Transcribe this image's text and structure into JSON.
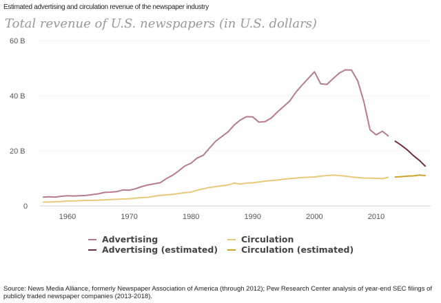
{
  "subtitle": "Estimated advertising and circulation revenue of the newspaper industry",
  "source": "Source: News Media Alliance, formerly Newspaper Association of America (through 2012); Pew Research Center analysis of year-end SEC filings of publicly traded newspaper companies (2013-2018).",
  "chart_data": {
    "type": "line",
    "title": "Total revenue of U.S. newspapers (in U.S. dollars)",
    "xlabel": "",
    "ylabel": "",
    "xlim": [
      1956,
      2018
    ],
    "ylim": [
      0,
      60
    ],
    "yticks": [
      {
        "v": 0,
        "label": "0"
      },
      {
        "v": 20,
        "label": "20 B"
      },
      {
        "v": 40,
        "label": "40 B"
      },
      {
        "v": 60,
        "label": "60 B"
      }
    ],
    "xticks": [
      1960,
      1970,
      1980,
      1990,
      2000,
      2010
    ],
    "grid": true,
    "legend_placement": "bottom",
    "series": [
      {
        "name": "Advertising",
        "color": "#b77a8c",
        "x0": 1956,
        "values": [
          3.2,
          3.3,
          3.2,
          3.5,
          3.7,
          3.6,
          3.7,
          3.8,
          4.1,
          4.4,
          4.9,
          5.0,
          5.2,
          5.8,
          5.7,
          6.2,
          7.0,
          7.6,
          8.0,
          8.4,
          9.9,
          11.1,
          12.7,
          14.5,
          15.5,
          17.4,
          18.4,
          21.0,
          23.5,
          25.2,
          26.9,
          29.4,
          31.2,
          32.4,
          32.3,
          30.4,
          30.6,
          31.9,
          34.1,
          36.1,
          38.1,
          41.3,
          43.9,
          46.3,
          48.7,
          44.3,
          44.1,
          46.2,
          48.2,
          49.4,
          49.3,
          45.4,
          37.8,
          27.6,
          25.8,
          27.1,
          25.3
        ]
      },
      {
        "name": "Advertising (estimated)",
        "color": "#6b2d42",
        "x0": 2013,
        "values": [
          23.6,
          22.1,
          20.4,
          18.3,
          16.5,
          14.3
        ]
      },
      {
        "name": "Circulation",
        "color": "#e8c97a",
        "x0": 1956,
        "values": [
          1.4,
          1.4,
          1.5,
          1.6,
          1.8,
          1.8,
          1.9,
          2.0,
          2.0,
          2.1,
          2.2,
          2.3,
          2.4,
          2.5,
          2.6,
          2.8,
          3.0,
          3.1,
          3.5,
          3.8,
          4.0,
          4.2,
          4.5,
          4.8,
          5.0,
          5.7,
          6.2,
          6.7,
          7.0,
          7.3,
          7.6,
          8.3,
          7.9,
          8.3,
          8.4,
          8.7,
          9.0,
          9.2,
          9.4,
          9.7,
          9.9,
          10.1,
          10.3,
          10.4,
          10.5,
          10.8,
          11.0,
          11.2,
          11.0,
          10.8,
          10.5,
          10.3,
          10.1,
          10.1,
          10.0,
          9.9,
          10.4
        ]
      },
      {
        "name": "Circulation (estimated)",
        "color": "#c9a227",
        "x0": 2013,
        "values": [
          10.5,
          10.6,
          10.8,
          10.9,
          11.2,
          11.0
        ]
      }
    ]
  }
}
